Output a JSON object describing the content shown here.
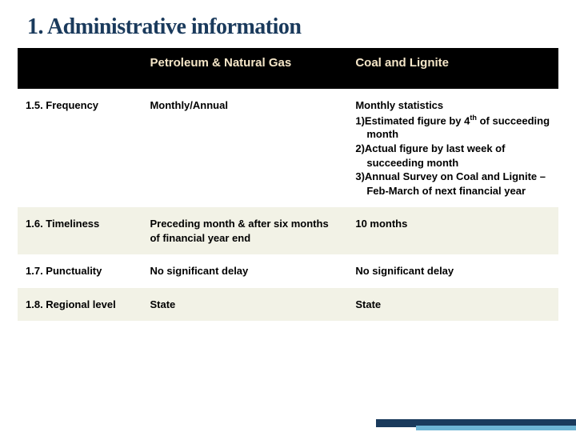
{
  "title": "1. Administrative information",
  "title_color": "#1a3a5c",
  "title_fontsize": 28,
  "header_bg": "#000000",
  "header_color": "#f5e6c8",
  "row_even_bg": "#f2f2e6",
  "row_odd_bg": "#ffffff",
  "cell_fontsize": 13,
  "columns": [
    "",
    "Petroleum & Natural Gas",
    "Coal and Lignite"
  ],
  "column_widths": [
    "23%",
    "38%",
    "39%"
  ],
  "rows": [
    {
      "label": "1.5. Frequency",
      "petroleum": "Monthly/Annual",
      "coal": "Monthly statistics\n1)Estimated figure by 4th of succeeding  month\n2)Actual figure by last week of succeeding month\n3)Annual Survey on Coal and Lignite – Feb-March of next financial year"
    },
    {
      "label": "1.6. Timeliness",
      "petroleum": "Preceding month & after six months of financial year end",
      "coal": "10 months"
    },
    {
      "label": "1.7. Punctuality",
      "petroleum": "No significant delay",
      "coal": "No significant delay"
    },
    {
      "label": "1.8. Regional level",
      "petroleum": "State",
      "coal": "State"
    }
  ],
  "accent_dark": "#1a3a5c",
  "accent_light": "#6db4d4"
}
